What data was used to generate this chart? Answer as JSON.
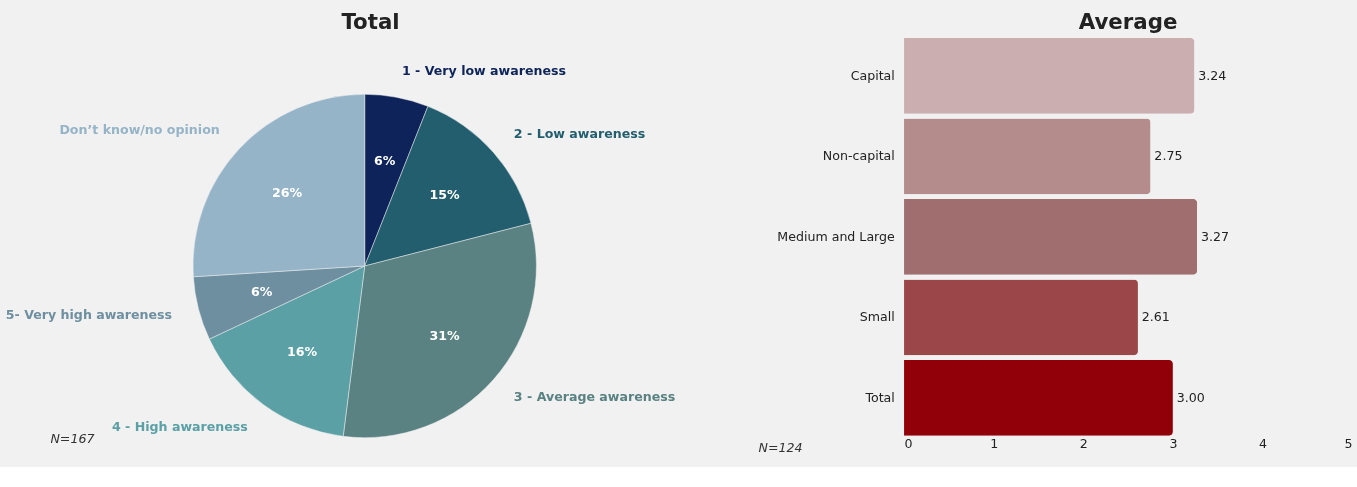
{
  "chart_data": [
    {
      "type": "pie",
      "title": "Total",
      "categories": [
        "1 - Very low awareness",
        "2 - Low awareness",
        "3 - Average awareness",
        "4 - High awareness",
        "5- Very high awareness",
        "Don’t know/no opinion"
      ],
      "values": [
        6,
        15,
        31,
        16,
        6,
        26
      ],
      "colors": [
        "#0d2359",
        "#235e6e",
        "#5a8282",
        "#5aa0a5",
        "#6e8fa0",
        "#96b4c8"
      ],
      "value_labels": [
        "6%",
        "15%",
        "31%",
        "16%",
        "6%",
        "26%"
      ],
      "annotations": [
        "N=167"
      ]
    },
    {
      "type": "bar",
      "title": "Average",
      "orientation": "horizontal",
      "categories": [
        "Capital",
        "Non-capital",
        "Medium and Large",
        "Small",
        "Total"
      ],
      "values": [
        3.24,
        2.75,
        3.27,
        2.61,
        3.0
      ],
      "colors": [
        "#cbaeb0",
        "#b48c8c",
        "#a06e6e",
        "#9b4649",
        "#910009"
      ],
      "value_labels": [
        "3.24",
        "2.75",
        "3.27",
        "2.61",
        "3.00"
      ],
      "xlim": [
        0,
        5
      ],
      "xticks": [
        0,
        1,
        2,
        3,
        4,
        5
      ],
      "grid": false,
      "annotations": [
        "N=124"
      ]
    }
  ]
}
